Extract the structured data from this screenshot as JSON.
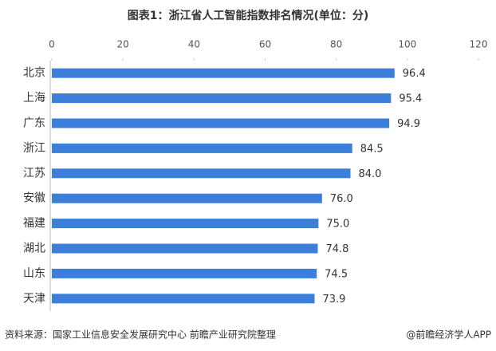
{
  "chart_data": {
    "type": "bar",
    "orientation": "horizontal",
    "title": "图表1：浙江省人工智能指数排名情况(单位：分)",
    "categories": [
      "北京",
      "上海",
      "广东",
      "浙江",
      "江苏",
      "安徽",
      "福建",
      "湖北",
      "山东",
      "天津"
    ],
    "values": [
      96.4,
      95.4,
      94.9,
      84.5,
      84.0,
      76.0,
      75.0,
      74.8,
      74.5,
      73.9
    ],
    "value_labels": [
      "96.4",
      "95.4",
      "94.9",
      "84.5",
      "84.0",
      "76.0",
      "75.0",
      "74.8",
      "74.5",
      "73.9"
    ],
    "color": "#3b7fdb",
    "xlim": [
      0,
      120
    ],
    "xticks": [
      0,
      20,
      40,
      60,
      80,
      100,
      120
    ],
    "source": "资料来源：国家工业信息安全发展研究中心 前瞻产业研究院整理",
    "credit": "@前瞻经济学人APP"
  }
}
